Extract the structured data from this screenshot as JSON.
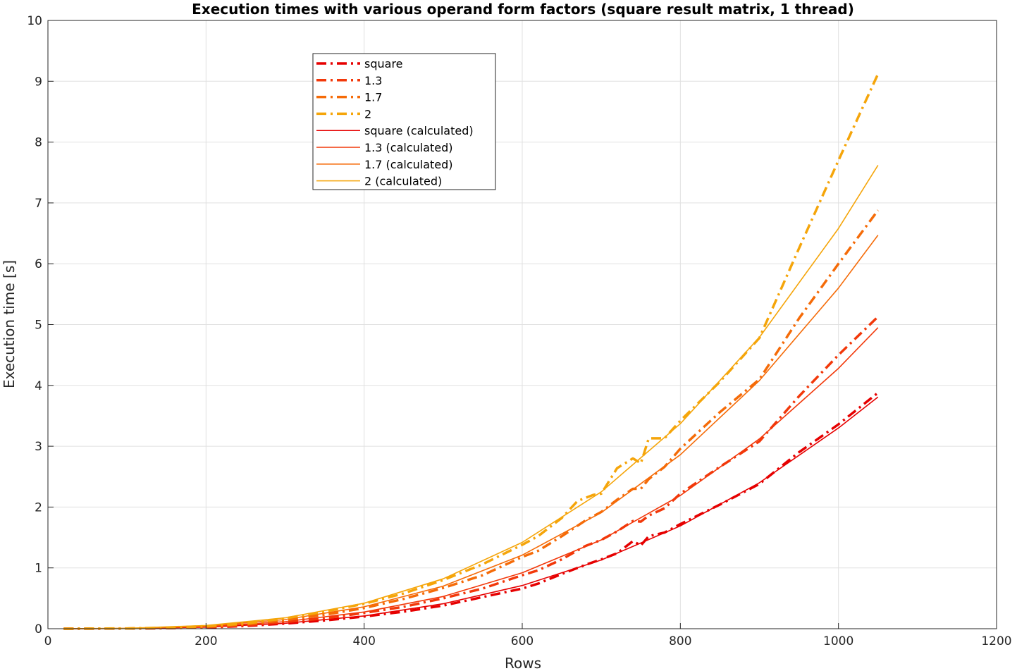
{
  "chart_data": {
    "type": "line",
    "title": "Execution times with various operand form factors (square result matrix, 1 thread)",
    "xlabel": "Rows",
    "ylabel": "Execution time [s]",
    "xlim": [
      0,
      1200
    ],
    "ylim": [
      0,
      10
    ],
    "xticks": [
      0,
      200,
      400,
      600,
      800,
      1000,
      1200
    ],
    "yticks": [
      0,
      1,
      2,
      3,
      4,
      5,
      6,
      7,
      8,
      9,
      10
    ],
    "grid": true,
    "legend_position": "top-center-left",
    "series": [
      {
        "name": "square",
        "style": "dashdot",
        "color": "#e60000",
        "x": [
          20,
          100,
          150,
          200,
          250,
          300,
          350,
          400,
          450,
          500,
          550,
          600,
          620,
          650,
          680,
          700,
          720,
          740,
          750,
          760,
          780,
          800,
          850,
          900,
          950,
          1000,
          1050
        ],
        "y": [
          0.0,
          0.002,
          0.008,
          0.02,
          0.045,
          0.085,
          0.135,
          0.2,
          0.28,
          0.38,
          0.52,
          0.66,
          0.74,
          0.9,
          1.05,
          1.14,
          1.24,
          1.44,
          1.37,
          1.52,
          1.58,
          1.72,
          2.04,
          2.38,
          2.9,
          3.36,
          3.88
        ]
      },
      {
        "name": "1.3",
        "style": "dashdot",
        "color": "#f2380a",
        "x": [
          20,
          100,
          150,
          200,
          250,
          300,
          350,
          400,
          450,
          500,
          550,
          600,
          620,
          650,
          680,
          700,
          720,
          740,
          750,
          760,
          780,
          800,
          850,
          900,
          950,
          1000,
          1050
        ],
        "y": [
          0.0,
          0.003,
          0.01,
          0.025,
          0.055,
          0.11,
          0.17,
          0.26,
          0.36,
          0.5,
          0.66,
          0.88,
          0.96,
          1.14,
          1.36,
          1.46,
          1.6,
          1.77,
          1.76,
          1.86,
          1.98,
          2.22,
          2.66,
          3.08,
          3.82,
          4.5,
          5.13
        ]
      },
      {
        "name": "1.7",
        "style": "dashdot",
        "color": "#f56b08",
        "x": [
          20,
          100,
          150,
          200,
          250,
          300,
          350,
          400,
          450,
          500,
          550,
          600,
          620,
          650,
          680,
          700,
          720,
          740,
          750,
          760,
          780,
          800,
          850,
          900,
          950,
          1000,
          1050
        ],
        "y": [
          0.0,
          0.004,
          0.013,
          0.033,
          0.07,
          0.14,
          0.23,
          0.34,
          0.49,
          0.67,
          0.88,
          1.18,
          1.28,
          1.52,
          1.78,
          1.92,
          2.12,
          2.3,
          2.3,
          2.46,
          2.66,
          2.96,
          3.56,
          4.1,
          5.1,
          6.0,
          6.88
        ]
      },
      {
        "name": "2",
        "style": "dashdot",
        "color": "#f5a50a",
        "x": [
          20,
          100,
          150,
          200,
          250,
          300,
          350,
          400,
          450,
          500,
          550,
          600,
          620,
          650,
          670,
          690,
          700,
          720,
          740,
          750,
          760,
          780,
          800,
          850,
          900,
          950,
          1000,
          1050
        ],
        "y": [
          0.0,
          0.005,
          0.016,
          0.04,
          0.085,
          0.17,
          0.28,
          0.41,
          0.58,
          0.8,
          1.06,
          1.38,
          1.52,
          1.82,
          2.1,
          2.2,
          2.22,
          2.64,
          2.8,
          2.72,
          3.13,
          3.13,
          3.42,
          4.06,
          4.78,
          6.25,
          7.7,
          9.12
        ]
      },
      {
        "name": "square (calculated)",
        "style": "solid",
        "color": "#e60000",
        "x": [
          20,
          100,
          200,
          300,
          400,
          500,
          600,
          700,
          800,
          900,
          1000,
          1050
        ],
        "y": [
          0.0,
          0.003,
          0.026,
          0.089,
          0.21,
          0.41,
          0.71,
          1.13,
          1.69,
          2.4,
          3.3,
          3.81
        ]
      },
      {
        "name": "1.3 (calculated)",
        "style": "solid",
        "color": "#f2380a",
        "x": [
          20,
          100,
          200,
          300,
          400,
          500,
          600,
          700,
          800,
          900,
          1000,
          1050
        ],
        "y": [
          0.0,
          0.004,
          0.034,
          0.116,
          0.275,
          0.53,
          0.92,
          1.46,
          2.19,
          3.12,
          4.28,
          4.95
        ]
      },
      {
        "name": "1.7 (calculated)",
        "style": "solid",
        "color": "#f56b08",
        "x": [
          20,
          100,
          200,
          300,
          400,
          500,
          600,
          700,
          800,
          900,
          1000,
          1050
        ],
        "y": [
          0.0,
          0.006,
          0.044,
          0.151,
          0.36,
          0.7,
          1.21,
          1.91,
          2.86,
          4.08,
          5.6,
          6.47
        ]
      },
      {
        "name": "2 (calculated)",
        "style": "solid",
        "color": "#f5a50a",
        "x": [
          20,
          100,
          200,
          300,
          400,
          500,
          600,
          700,
          800,
          900,
          1000,
          1050
        ],
        "y": [
          0.0,
          0.007,
          0.053,
          0.178,
          0.42,
          0.82,
          1.42,
          2.25,
          3.37,
          4.79,
          6.58,
          7.62
        ]
      }
    ]
  }
}
